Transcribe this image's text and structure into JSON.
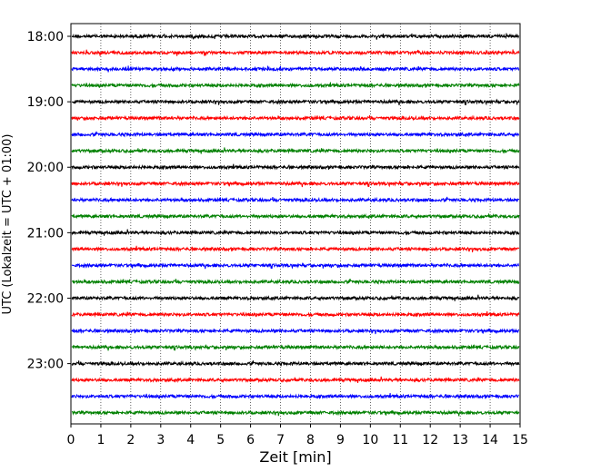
{
  "chart_data": {
    "type": "line",
    "title": "",
    "xlabel": "Zeit  [min]",
    "ylabel": "UTC (Lokalzeit = UTC + 01:00)",
    "xlim": [
      0,
      15
    ],
    "xticks": [
      "0",
      "1",
      "2",
      "3",
      "4",
      "5",
      "6",
      "7",
      "8",
      "9",
      "10",
      "11",
      "12",
      "13",
      "14",
      "15"
    ],
    "ytick_labels": [
      "18:00",
      "19:00",
      "20:00",
      "21:00",
      "22:00",
      "23:00"
    ],
    "rows_per_hour": 4,
    "row_minutes": 15,
    "start_hour": "18:00",
    "trace_count": 24,
    "trace_colors": [
      "#000000",
      "#ff0000",
      "#0000ff",
      "#008000"
    ],
    "grid": {
      "x": true,
      "y": false,
      "style": "dotted"
    },
    "legend": "none"
  }
}
